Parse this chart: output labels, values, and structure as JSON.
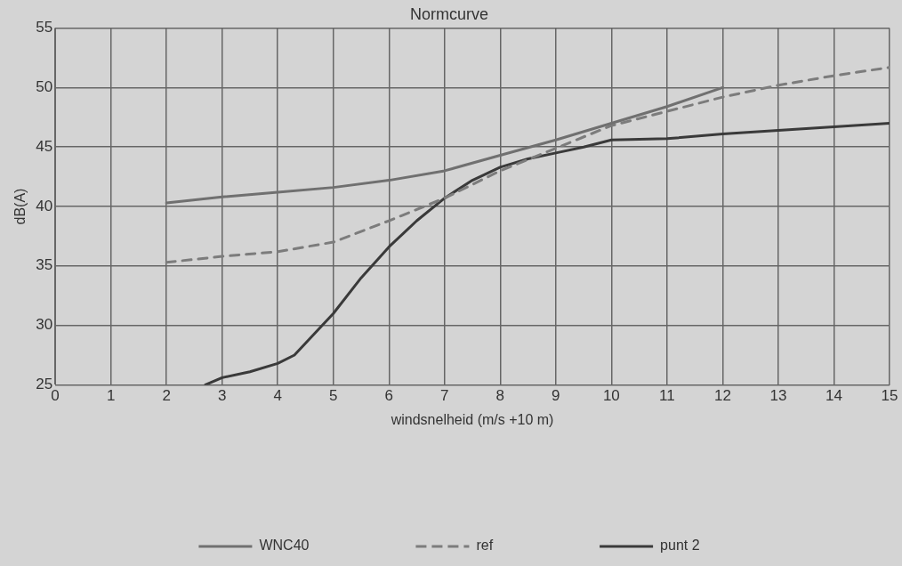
{
  "chart_data": {
    "type": "line",
    "title": "Normcurve",
    "xlabel": "windsnelheid (m/s +10 m)",
    "ylabel": "dB(A)",
    "xlim": [
      0,
      15
    ],
    "xticks": [
      0,
      1,
      2,
      3,
      4,
      5,
      6,
      7,
      8,
      9,
      10,
      11,
      12,
      13,
      14,
      15
    ],
    "ylim": [
      25,
      55
    ],
    "yticks": [
      25,
      30,
      35,
      40,
      45,
      50,
      55
    ],
    "grid": true,
    "legend": "bottom",
    "marker": "none",
    "series": [
      {
        "name": "WNC40",
        "color": "#707070",
        "line_style": "solid",
        "x": [
          2,
          3,
          4,
          5,
          6,
          7,
          8,
          9,
          10,
          11,
          12
        ],
        "values": [
          40.3,
          40.8,
          41.2,
          41.6,
          42.2,
          43,
          44.3,
          45.6,
          47,
          48.4,
          50
        ]
      },
      {
        "name": "ref",
        "color": "#7c7c7c",
        "line_style": "dashed",
        "x": [
          2,
          3,
          4,
          5,
          6,
          7,
          8,
          9,
          10,
          11,
          12,
          13,
          14,
          15
        ],
        "values": [
          35.3,
          35.8,
          36.2,
          37,
          38.8,
          40.7,
          43,
          44.9,
          46.8,
          48,
          49.2,
          50.2,
          51,
          51.7
        ]
      },
      {
        "name": "punt 2",
        "color": "#3a3a3a",
        "line_style": "solid",
        "x": [
          2.7,
          3,
          3.5,
          4,
          4.3,
          5,
          5.5,
          6,
          6.5,
          7,
          7.5,
          8,
          8.5,
          9,
          9.5,
          10,
          11,
          12,
          13,
          14,
          15
        ],
        "values": [
          25,
          25.6,
          26.1,
          26.8,
          27.5,
          31,
          34,
          36.6,
          38.8,
          40.7,
          42.2,
          43.3,
          44,
          44.5,
          45,
          45.6,
          45.7,
          46.1,
          46.4,
          46.7,
          47
        ]
      }
    ]
  }
}
